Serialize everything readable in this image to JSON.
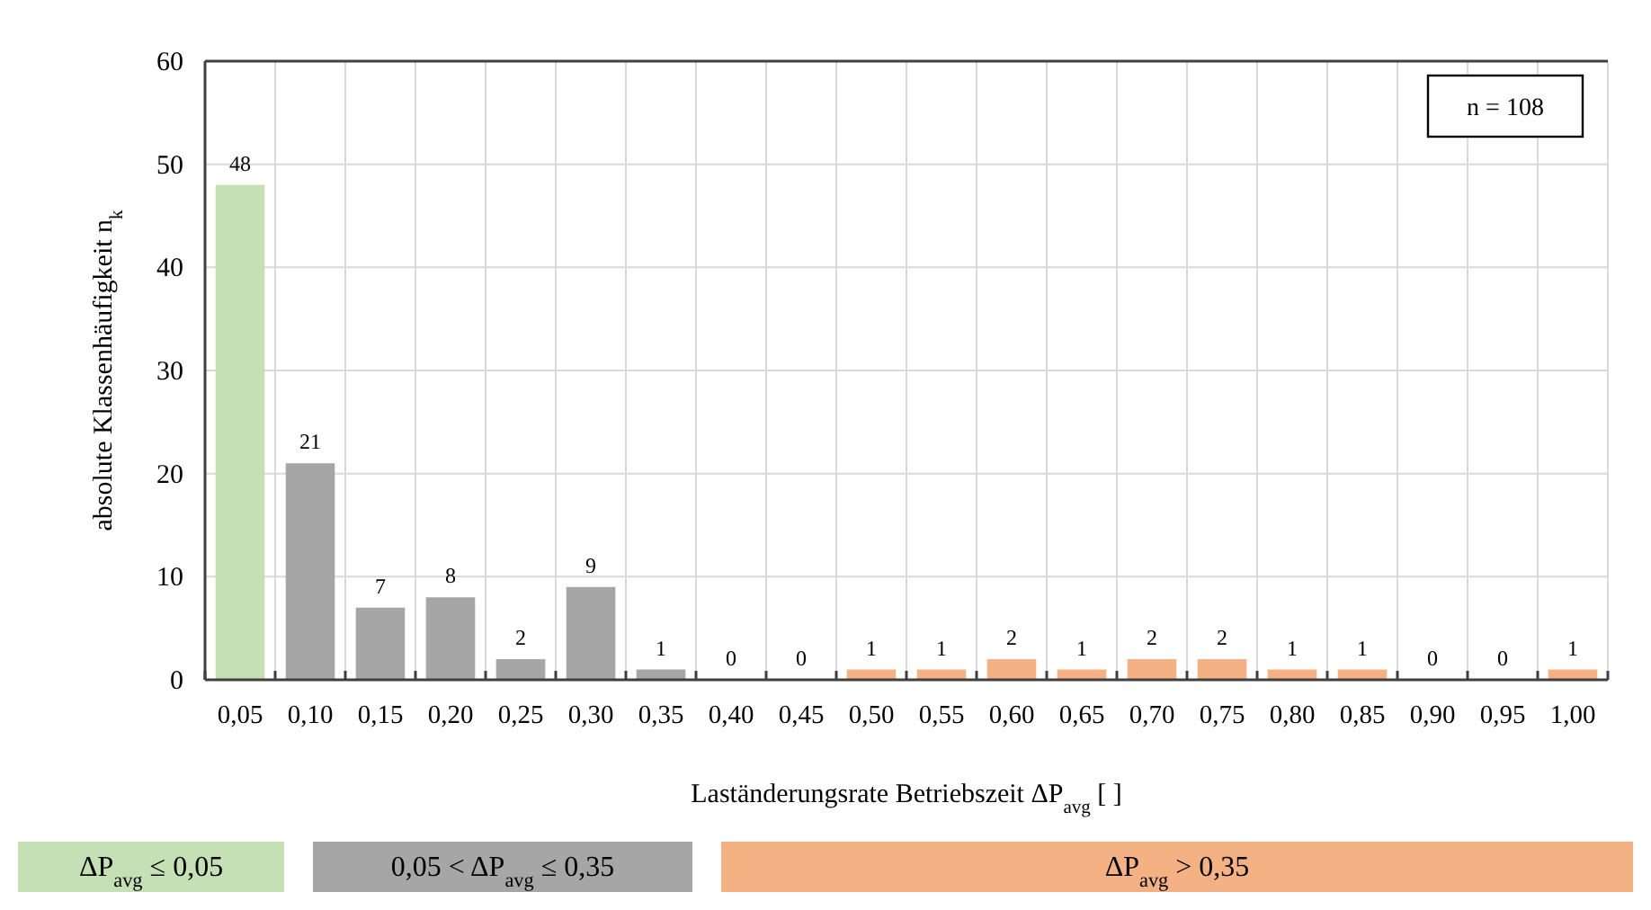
{
  "chart_data": {
    "type": "bar",
    "categories": [
      "0,05",
      "0,10",
      "0,15",
      "0,20",
      "0,25",
      "0,30",
      "0,35",
      "0,40",
      "0,45",
      "0,50",
      "0,55",
      "0,60",
      "0,65",
      "0,70",
      "0,75",
      "0,80",
      "0,85",
      "0,90",
      "0,95",
      "1,00"
    ],
    "series": [
      {
        "name": "ΔP$_{avg}$ ≤ 0,05",
        "color": "#c5e0b4",
        "values": [
          48,
          null,
          null,
          null,
          null,
          null,
          null,
          null,
          null,
          null,
          null,
          null,
          null,
          null,
          null,
          null,
          null,
          null,
          null,
          null
        ]
      },
      {
        "name": "0,05 < ΔP$_{avg}$ ≤ 0,35",
        "color": "#a6a6a6",
        "values": [
          null,
          21,
          7,
          8,
          2,
          9,
          1,
          null,
          null,
          null,
          null,
          null,
          null,
          null,
          null,
          null,
          null,
          null,
          null,
          null
        ]
      },
      {
        "name": "ΔP$_{avg}$ > 0,35",
        "color": "#f4b183",
        "values": [
          null,
          null,
          null,
          null,
          null,
          null,
          null,
          0,
          0,
          1,
          1,
          2,
          1,
          2,
          2,
          1,
          1,
          0,
          0,
          1
        ]
      }
    ],
    "ylim": [
      0,
      60
    ],
    "yticks": [
      0,
      10,
      20,
      30,
      40,
      50,
      60
    ],
    "xlabel": "Laständerungsrate Betriebszeit ΔP$_{avg}$ [ ]",
    "ylabel": "absolute Klassenhäufigkeit n$_{k}$",
    "annotations": [
      "n = 108"
    ],
    "grid": true,
    "data_labels": true,
    "legend": "bottom"
  }
}
